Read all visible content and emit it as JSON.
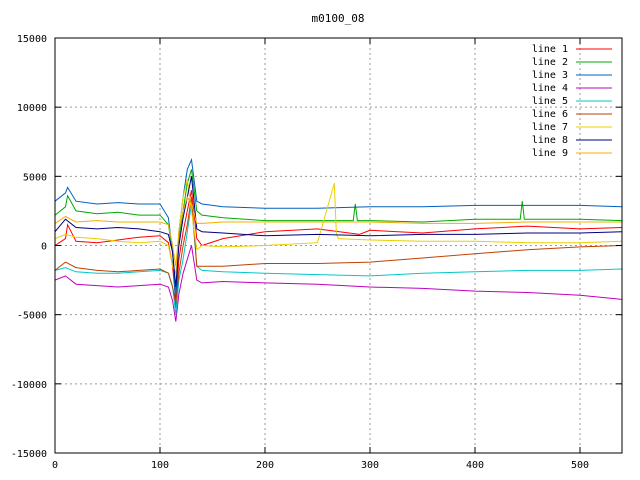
{
  "chart_data": {
    "type": "line",
    "title": "m0100_08",
    "xlabel": "",
    "ylabel": "",
    "xlim": [
      0,
      540
    ],
    "ylim": [
      -15000,
      15000
    ],
    "x_ticks": [
      0,
      100,
      200,
      300,
      400,
      500
    ],
    "y_ticks": [
      -15000,
      -10000,
      -5000,
      0,
      5000,
      10000,
      15000
    ],
    "grid": true,
    "legend_position": "top-right",
    "series": [
      {
        "name": "line 1",
        "color": "#ff0000",
        "x": [
          0,
          10,
          12,
          20,
          40,
          60,
          80,
          100,
          108,
          112,
          115,
          118,
          122,
          126,
          130,
          135,
          140,
          160,
          200,
          250,
          290,
          300,
          350,
          400,
          450,
          500,
          540
        ],
        "y": [
          0,
          500,
          1500,
          300,
          200,
          400,
          600,
          700,
          200,
          -1500,
          -4000,
          -1000,
          1000,
          2500,
          4000,
          500,
          0,
          500,
          1000,
          1200,
          800,
          1100,
          900,
          1200,
          1400,
          1200,
          1300
        ]
      },
      {
        "name": "line 2",
        "color": "#00aa00",
        "x": [
          0,
          10,
          12,
          20,
          40,
          60,
          80,
          100,
          108,
          112,
          115,
          118,
          122,
          126,
          130,
          135,
          140,
          160,
          200,
          250,
          284,
          286,
          288,
          300,
          350,
          400,
          443,
          445,
          447,
          450,
          500,
          540
        ],
        "y": [
          2200,
          2800,
          3600,
          2500,
          2300,
          2400,
          2200,
          2200,
          1500,
          -500,
          -3500,
          500,
          2500,
          4500,
          5500,
          2500,
          2200,
          2000,
          1800,
          1800,
          1800,
          3000,
          1800,
          1800,
          1700,
          1900,
          1900,
          3200,
          1900,
          1900,
          1900,
          1800
        ]
      },
      {
        "name": "line 3",
        "color": "#0060c0",
        "x": [
          0,
          10,
          12,
          20,
          40,
          60,
          80,
          100,
          108,
          112,
          115,
          118,
          122,
          126,
          130,
          135,
          140,
          160,
          200,
          250,
          300,
          350,
          400,
          450,
          500,
          540
        ],
        "y": [
          3200,
          3800,
          4200,
          3200,
          3000,
          3100,
          3000,
          3000,
          2000,
          -500,
          -4500,
          1000,
          3500,
          5500,
          6200,
          3200,
          3000,
          2800,
          2700,
          2700,
          2800,
          2800,
          2900,
          2900,
          2900,
          2800
        ]
      },
      {
        "name": "line 4",
        "color": "#c000c0",
        "x": [
          0,
          10,
          20,
          40,
          60,
          80,
          100,
          108,
          112,
          115,
          118,
          122,
          126,
          130,
          135,
          140,
          160,
          200,
          250,
          300,
          350,
          400,
          450,
          500,
          540
        ],
        "y": [
          -2500,
          -2200,
          -2800,
          -2900,
          -3000,
          -2900,
          -2800,
          -3000,
          -4000,
          -5500,
          -3500,
          -2000,
          -1000,
          0,
          -2500,
          -2700,
          -2600,
          -2700,
          -2800,
          -3000,
          -3100,
          -3300,
          -3400,
          -3600,
          -3900
        ]
      },
      {
        "name": "line 5",
        "color": "#00c8c8",
        "x": [
          0,
          10,
          20,
          40,
          60,
          80,
          100,
          108,
          112,
          115,
          118,
          122,
          126,
          130,
          135,
          140,
          160,
          200,
          250,
          300,
          350,
          400,
          450,
          500,
          540
        ],
        "y": [
          -1800,
          -1600,
          -1900,
          -2000,
          -2000,
          -1900,
          -1800,
          -2000,
          -3000,
          -5000,
          -2500,
          -1000,
          1000,
          3000,
          -1500,
          -1800,
          -1900,
          -2000,
          -2100,
          -2200,
          -2000,
          -1900,
          -1800,
          -1800,
          -1700
        ]
      },
      {
        "name": "line 6",
        "color": "#c04000",
        "x": [
          0,
          10,
          20,
          40,
          60,
          80,
          100,
          108,
          112,
          115,
          118,
          122,
          126,
          130,
          135,
          140,
          160,
          200,
          250,
          300,
          350,
          400,
          450,
          500,
          540
        ],
        "y": [
          -1800,
          -1200,
          -1600,
          -1800,
          -1900,
          -1800,
          -1700,
          -2000,
          -3000,
          -4200,
          -2000,
          0,
          1500,
          3500,
          -1500,
          -1500,
          -1500,
          -1300,
          -1300,
          -1200,
          -900,
          -600,
          -300,
          -100,
          0
        ]
      },
      {
        "name": "line 7",
        "color": "#e8d000",
        "x": [
          0,
          10,
          20,
          40,
          60,
          80,
          100,
          108,
          112,
          115,
          118,
          122,
          126,
          130,
          135,
          140,
          160,
          200,
          250,
          266,
          268,
          270,
          300,
          350,
          400,
          450,
          500,
          540
        ],
        "y": [
          500,
          800,
          600,
          500,
          300,
          200,
          300,
          0,
          -1500,
          -2000,
          1000,
          3500,
          4800,
          2500,
          -300,
          0,
          -100,
          0,
          200,
          4500,
          800,
          500,
          400,
          300,
          300,
          200,
          200,
          300
        ]
      },
      {
        "name": "line 8",
        "color": "#000080",
        "x": [
          0,
          10,
          20,
          40,
          60,
          80,
          100,
          108,
          112,
          115,
          118,
          122,
          126,
          130,
          135,
          140,
          160,
          200,
          250,
          300,
          350,
          400,
          450,
          500,
          540
        ],
        "y": [
          1000,
          1900,
          1300,
          1200,
          1300,
          1200,
          1000,
          800,
          -500,
          -3000,
          0,
          2000,
          3500,
          5000,
          1200,
          1000,
          900,
          700,
          800,
          700,
          800,
          800,
          900,
          900,
          1000
        ]
      },
      {
        "name": "line 9",
        "color": "#f0b000",
        "x": [
          0,
          10,
          20,
          40,
          60,
          80,
          100,
          108,
          112,
          115,
          118,
          122,
          126,
          130,
          135,
          140,
          160,
          200,
          250,
          300,
          350,
          400,
          450,
          500,
          540
        ],
        "y": [
          1600,
          2100,
          1700,
          1800,
          1700,
          1700,
          1700,
          1500,
          0,
          -1500,
          1000,
          2500,
          3500,
          3000,
          1600,
          1600,
          1700,
          1700,
          1700,
          1700,
          1600,
          1600,
          1700,
          1700,
          1700
        ]
      }
    ]
  }
}
